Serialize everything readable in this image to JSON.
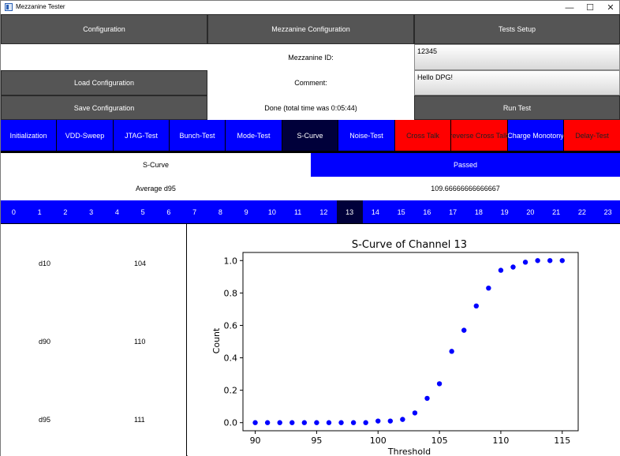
{
  "window": {
    "title": "Mezzanine Tester",
    "minimize": "—",
    "maximize": "☐",
    "close": "✕"
  },
  "header": {
    "configuration": "Configuration",
    "mezzanine_configuration": "Mezzanine Configuration",
    "tests_setup": "Tests Setup"
  },
  "config": {
    "mezzanine_id_label": "Mezzanine ID:",
    "mezzanine_id_value": "12345",
    "comment_label": "Comment:",
    "comment_value": "Hello DPG!",
    "load_button": "Load Configuration",
    "save_button": "Save Configuration",
    "status_text": "Done (total time was 0:05:44)",
    "run_button": "Run Test"
  },
  "tests": [
    {
      "label": "Initialization",
      "state": "blue"
    },
    {
      "label": "VDD-Sweep",
      "state": "blue"
    },
    {
      "label": "JTAG-Test",
      "state": "blue"
    },
    {
      "label": "Bunch-Test",
      "state": "blue"
    },
    {
      "label": "Mode-Test",
      "state": "blue"
    },
    {
      "label": "S-Curve",
      "state": "selected"
    },
    {
      "label": "Noise-Test",
      "state": "blue"
    },
    {
      "label": "Cross Talk",
      "state": "red"
    },
    {
      "label": "reverse Cross Talk",
      "state": "red"
    },
    {
      "label": "Charge Monotony",
      "state": "blue"
    },
    {
      "label": "Delay-Test",
      "state": "red"
    }
  ],
  "result": {
    "test_name": "S-Curve",
    "status": "Passed",
    "metric_label": "Average d95",
    "metric_value": "109.66666666666667"
  },
  "channels": [
    "0",
    "1",
    "2",
    "3",
    "4",
    "5",
    "6",
    "7",
    "8",
    "9",
    "10",
    "11",
    "12",
    "13",
    "14",
    "15",
    "16",
    "17",
    "18",
    "19",
    "20",
    "21",
    "22",
    "23"
  ],
  "selected_channel": "13",
  "stats": [
    {
      "name": "d10",
      "value": "104"
    },
    {
      "name": "d90",
      "value": "110"
    },
    {
      "name": "d95",
      "value": "111"
    }
  ],
  "colors": {
    "blue": "#0000ff",
    "selected": "#00003a",
    "red": "#ff0000",
    "gray": "#555555",
    "point": "#0000ff"
  },
  "chart_data": {
    "type": "scatter",
    "title": "S-Curve of Channel 13",
    "xlabel": "Threshold",
    "ylabel": "Count",
    "xlim": [
      89,
      116.3
    ],
    "ylim": [
      -0.05,
      1.05
    ],
    "xticks": [
      90,
      95,
      100,
      105,
      110,
      115
    ],
    "yticks": [
      0.0,
      0.2,
      0.4,
      0.6,
      0.8,
      1.0
    ],
    "ytick_labels": [
      "0.0",
      "0.2",
      "0.4",
      "0.6",
      "0.8",
      "1.0"
    ],
    "grid": false,
    "series": [
      {
        "x": [
          90,
          91,
          92,
          93,
          94,
          95,
          96,
          97,
          98,
          99,
          100,
          101,
          102,
          103,
          104,
          105,
          106,
          107,
          108,
          109,
          110,
          111,
          112,
          113,
          114,
          115
        ],
        "y": [
          0,
          0,
          0,
          0,
          0,
          0,
          0,
          0,
          0,
          0,
          0.01,
          0.01,
          0.02,
          0.06,
          0.15,
          0.24,
          0.44,
          0.57,
          0.72,
          0.83,
          0.94,
          0.96,
          0.99,
          1.0,
          1.0,
          1.0
        ]
      }
    ]
  }
}
